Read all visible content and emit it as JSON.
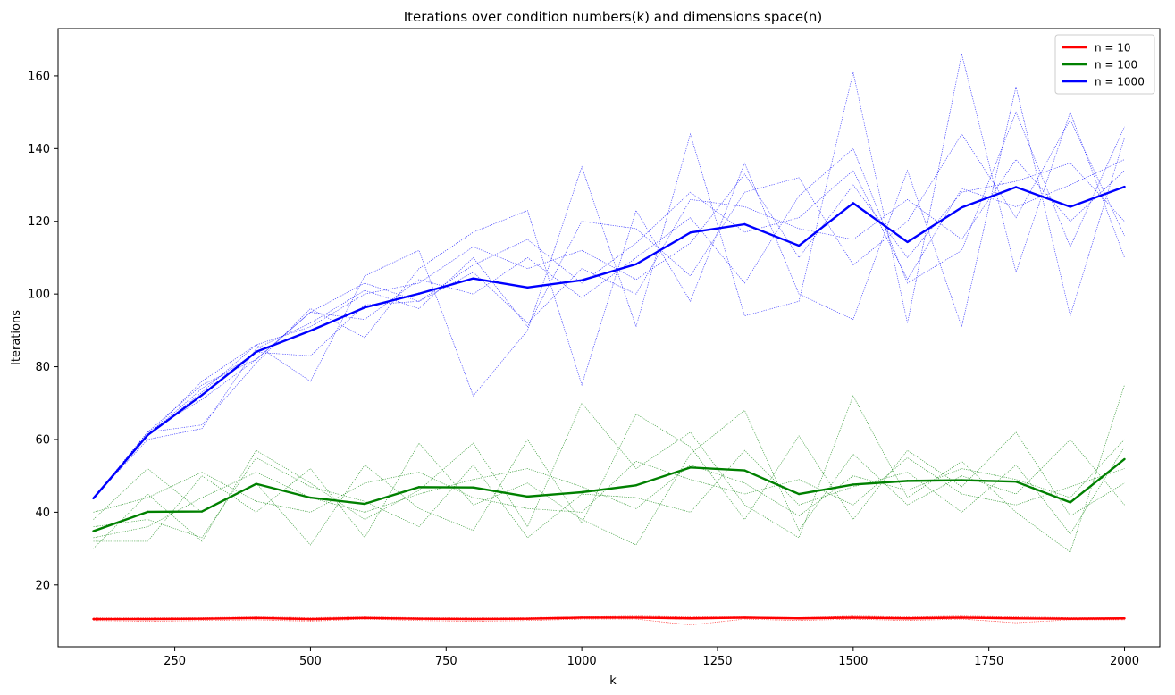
{
  "chart_data": {
    "type": "line",
    "title": "Iterations over condition numbers(k) and dimensions space(n)",
    "xlabel": "k",
    "ylabel": "Iterations",
    "xlim": [
      35,
      2065
    ],
    "ylim": [
      3,
      173
    ],
    "xticks": [
      250,
      500,
      750,
      1000,
      1250,
      1500,
      1750,
      2000
    ],
    "yticks": [
      20,
      40,
      60,
      80,
      100,
      120,
      140,
      160
    ],
    "legend_position": "top-right",
    "grid": false,
    "x": [
      100,
      200,
      300,
      400,
      500,
      600,
      700,
      800,
      900,
      1000,
      1100,
      1200,
      1300,
      1400,
      1500,
      1600,
      1700,
      1800,
      1900,
      2000
    ],
    "series": [
      {
        "name": "n = 10",
        "color": "#ff0000",
        "values": [
          10.6,
          10.6,
          10.7,
          10.9,
          10.6,
          10.9,
          10.7,
          10.6,
          10.7,
          11.0,
          11.0,
          10.8,
          11.0,
          10.8,
          11.0,
          10.8,
          11.0,
          10.8,
          10.7,
          10.8
        ],
        "runs": [
          [
            10.2,
            10.0,
            10.2,
            10.4,
            10.0,
            10.6,
            10.2,
            10.0,
            10.2,
            10.6,
            10.6,
            9.0,
            10.6,
            10.2,
            10.6,
            10.2,
            10.6,
            9.6,
            10.4,
            10.4
          ],
          [
            11.0,
            11.0,
            11.0,
            11.2,
            11.0,
            11.2,
            11.0,
            11.0,
            11.0,
            11.2,
            11.4,
            11.2,
            11.2,
            11.0,
            11.4,
            11.2,
            11.4,
            11.2,
            11.0,
            11.0
          ],
          [
            10.6,
            10.4,
            10.6,
            10.8,
            10.2,
            10.8,
            10.6,
            10.4,
            10.6,
            10.8,
            10.8,
            10.6,
            10.8,
            10.6,
            10.8,
            10.6,
            10.8,
            10.6,
            10.6,
            10.6
          ]
        ]
      },
      {
        "name": "n = 100",
        "color": "#008000",
        "values": [
          34.8,
          40.1,
          40.2,
          47.8,
          44.0,
          42.3,
          46.9,
          46.8,
          44.3,
          45.5,
          47.4,
          52.3,
          51.5,
          45.0,
          47.6,
          48.6,
          48.8,
          48.4,
          42.7,
          54.6
        ],
        "runs": [
          [
            30.0,
            45.0,
            32.0,
            57.0,
            48.0,
            38.0,
            46.0,
            59.0,
            36.0,
            70.0,
            52.0,
            62.0,
            42.0,
            33.0,
            72.0,
            44.0,
            54.0,
            40.0,
            29.0,
            75.0
          ],
          [
            38.0,
            52.0,
            40.0,
            48.0,
            31.0,
            53.0,
            41.0,
            35.0,
            60.0,
            37.0,
            67.0,
            58.0,
            38.0,
            61.0,
            38.0,
            57.0,
            47.0,
            62.0,
            39.0,
            48.0
          ],
          [
            32.0,
            32.0,
            50.0,
            40.0,
            52.0,
            33.0,
            59.0,
            42.0,
            48.0,
            38.0,
            31.0,
            56.0,
            68.0,
            35.0,
            56.0,
            42.0,
            50.0,
            45.0,
            60.0,
            42.0
          ],
          [
            36.0,
            38.0,
            33.0,
            55.0,
            47.0,
            43.0,
            36.0,
            53.0,
            33.0,
            45.0,
            44.0,
            40.0,
            57.0,
            42.0,
            47.0,
            51.0,
            40.0,
            53.0,
            34.0,
            58.0
          ],
          [
            40.0,
            44.0,
            51.0,
            43.0,
            40.0,
            48.0,
            51.0,
            44.0,
            41.0,
            40.0,
            54.0,
            49.0,
            45.0,
            49.0,
            42.0,
            55.0,
            45.0,
            42.0,
            47.0,
            52.0
          ],
          [
            33.0,
            36.0,
            44.0,
            51.0,
            44.0,
            40.0,
            45.0,
            49.0,
            52.0,
            47.0,
            41.0,
            53.0,
            48.0,
            39.0,
            50.0,
            46.0,
            52.0,
            49.0,
            44.0,
            60.0
          ]
        ]
      },
      {
        "name": "n = 1000",
        "color": "#0000ff",
        "values": [
          43.8,
          61.2,
          72.2,
          84.1,
          89.9,
          96.3,
          100.1,
          104.3,
          101.8,
          103.8,
          108.2,
          116.9,
          119.2,
          113.3,
          125.0,
          114.3,
          123.8,
          129.4,
          124.0,
          129.5
        ],
        "runs": [
          [
            43.8,
            61.0,
            76.0,
            86.0,
            76.0,
            105.0,
            112.0,
            72.0,
            90.0,
            135.0,
            91.0,
            144.0,
            94.0,
            98.0,
            161.0,
            92.0,
            166.0,
            106.0,
            150.0,
            110.0
          ],
          [
            43.8,
            62.0,
            64.0,
            81.0,
            96.0,
            88.0,
            107.0,
            117.0,
            123.0,
            75.0,
            123.0,
            98.0,
            136.0,
            100.0,
            93.0,
            134.0,
            91.0,
            157.0,
            94.0,
            143.0
          ],
          [
            43.8,
            60.0,
            63.0,
            85.0,
            92.0,
            101.0,
            96.0,
            110.0,
            91.0,
            120.0,
            118.0,
            105.0,
            128.0,
            132.0,
            108.0,
            120.0,
            144.0,
            121.0,
            148.0,
            116.0
          ],
          [
            43.8,
            62.0,
            71.0,
            82.0,
            95.0,
            93.0,
            104.0,
            100.0,
            110.0,
            99.0,
            110.0,
            121.0,
            103.0,
            127.0,
            140.0,
            103.0,
            112.0,
            150.0,
            113.0,
            146.0
          ],
          [
            43.8,
            61.0,
            74.0,
            84.0,
            83.0,
            97.0,
            98.0,
            106.0,
            92.0,
            107.0,
            100.0,
            126.0,
            124.0,
            118.0,
            115.0,
            126.0,
            115.0,
            137.0,
            120.0,
            134.0
          ],
          [
            43.8,
            61.0,
            73.0,
            86.0,
            91.0,
            100.0,
            103.0,
            113.0,
            107.0,
            112.0,
            104.0,
            114.0,
            133.0,
            110.0,
            130.0,
            110.0,
            128.0,
            131.0,
            136.0,
            120.0
          ],
          [
            43.8,
            62.0,
            75.0,
            82.0,
            95.0,
            103.0,
            98.0,
            108.0,
            115.0,
            103.0,
            114.0,
            128.0,
            117.0,
            121.0,
            134.0,
            104.0,
            129.0,
            124.0,
            130.0,
            137.0
          ]
        ]
      }
    ]
  }
}
